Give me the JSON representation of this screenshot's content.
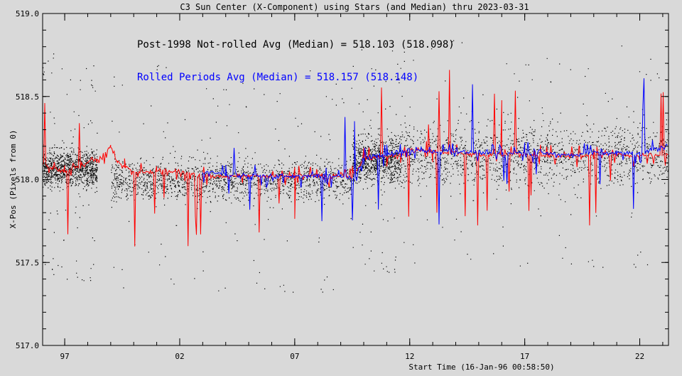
{
  "chart_data": {
    "type": "scatter",
    "title": "C3 Sun Center (X-Component) using Stars (and Median) thru 2023-03-31",
    "xlabel": "Start Time (16-Jan-96 00:58:50)",
    "ylabel": "X-Pos (Pixels from 0)",
    "xlim": [
      1996.04,
      2023.25
    ],
    "ylim": [
      517.0,
      519.0
    ],
    "yticks": [
      517.0,
      517.5,
      518.0,
      518.5,
      519.0
    ],
    "ytick_labels": [
      "517.0",
      "517.5",
      "518.0",
      "518.5",
      "519.0"
    ],
    "xticks": [
      1997,
      2002,
      2007,
      2012,
      2017,
      2022
    ],
    "xtick_labels": [
      "97",
      "02",
      "07",
      "12",
      "17",
      "22"
    ],
    "grid": false,
    "annotations": [
      {
        "text": "Post-1998 Not-rolled Avg (Median) = 518.103 (518.098)",
        "color": "#000000"
      },
      {
        "text": "Rolled Periods Avg (Median) = 518.157 (518.148)",
        "color": "#0000ff"
      }
    ],
    "colors": {
      "background": "#d9d9d9",
      "stars": "#000000",
      "median": "#ff0000",
      "rolled": "#0000ff"
    },
    "series": [
      {
        "kind": "stars",
        "segments": [
          {
            "x": [
              1996.04,
              1998.4
            ],
            "center": 518.07,
            "spread": 0.12
          },
          {
            "x": [
              1999.0,
              2009.5
            ],
            "center": 518.0,
            "spread": 0.13
          },
          {
            "x": [
              2009.5,
              2011.6
            ],
            "center": 518.12,
            "spread": 0.15
          },
          {
            "x": [
              2011.6,
              2023.25
            ],
            "center": 518.15,
            "spread": 0.2
          }
        ]
      },
      {
        "kind": "median",
        "x": [
          1996.04,
          1996.5,
          1997.0,
          1997.5,
          1998.0,
          1998.4,
          1999.0,
          1999.3,
          1999.6,
          2000.0,
          2001.0,
          2002.0,
          2003.0,
          2004.0,
          2005.0,
          2006.0,
          2007.0,
          2008.0,
          2009.0,
          2009.5,
          2010.0,
          2011.0,
          2011.6,
          2012.0,
          2013.0,
          2014.0,
          2015.0,
          2016.0,
          2017.0,
          2018.0,
          2019.0,
          2020.0,
          2021.0,
          2022.0,
          2023.25
        ],
        "y": [
          518.1,
          518.06,
          518.05,
          518.08,
          518.1,
          518.12,
          518.2,
          518.1,
          518.08,
          518.04,
          518.05,
          518.05,
          518.02,
          518.02,
          518.02,
          518.02,
          518.02,
          518.02,
          518.02,
          518.02,
          518.12,
          518.14,
          518.15,
          518.18,
          518.17,
          518.16,
          518.15,
          518.15,
          518.15,
          518.14,
          518.14,
          518.15,
          518.15,
          518.14,
          518.15
        ]
      },
      {
        "kind": "rolled",
        "x": [
          2003.0,
          2004.0,
          2005.0,
          2006.0,
          2007.0,
          2008.0,
          2009.0,
          2009.6,
          2010.0,
          2011.0,
          2012.0,
          2013.0,
          2014.0,
          2015.0,
          2016.0,
          2017.0,
          2018.0,
          2019.0,
          2020.0,
          2021.0,
          2022.0,
          2023.2
        ],
        "y": [
          518.05,
          518.03,
          518.02,
          518.02,
          518.02,
          518.02,
          518.02,
          518.0,
          518.13,
          518.15,
          518.18,
          518.17,
          518.17,
          518.16,
          518.16,
          518.16,
          518.16,
          518.15,
          518.16,
          518.16,
          518.16,
          518.2
        ]
      }
    ]
  }
}
